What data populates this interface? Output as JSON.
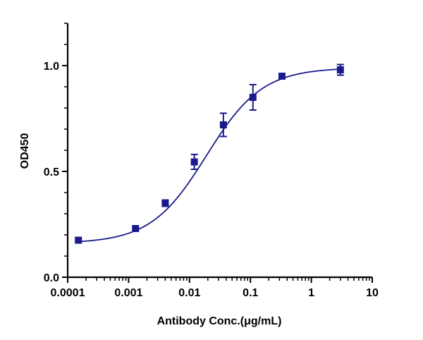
{
  "chart_data": {
    "type": "scatter",
    "xlabel": "Antibody Conc.(μg/mL)",
    "ylabel": "OD450",
    "xscale": "log",
    "xlim": [
      0.0001,
      10
    ],
    "ylim": [
      0,
      1.2
    ],
    "x_ticks": [
      0.0001,
      0.001,
      0.01,
      0.1,
      1,
      10
    ],
    "x_tick_labels": [
      "0.0001",
      "0.001",
      "0.01",
      "0.1",
      "1",
      "10"
    ],
    "y_ticks": [
      0,
      0.5,
      1.0
    ],
    "y_tick_labels": [
      "0.0",
      "0.5",
      "1.0"
    ],
    "grid": false,
    "color": "#1a1a8c",
    "marker": "square",
    "series": [
      {
        "x": [
          0.00015,
          0.0013,
          0.004,
          0.012,
          0.036,
          0.11,
          0.33,
          3.0
        ],
        "y": [
          0.175,
          0.23,
          0.35,
          0.545,
          0.72,
          0.85,
          0.95,
          0.98
        ],
        "error": [
          0.005,
          0.008,
          0.015,
          0.035,
          0.055,
          0.06,
          0.01,
          0.025
        ]
      }
    ],
    "fit": {
      "type": "four-parameter-logistic",
      "bottom": 0.16,
      "top": 0.99,
      "ec50": 0.019,
      "hill": 0.95
    }
  }
}
